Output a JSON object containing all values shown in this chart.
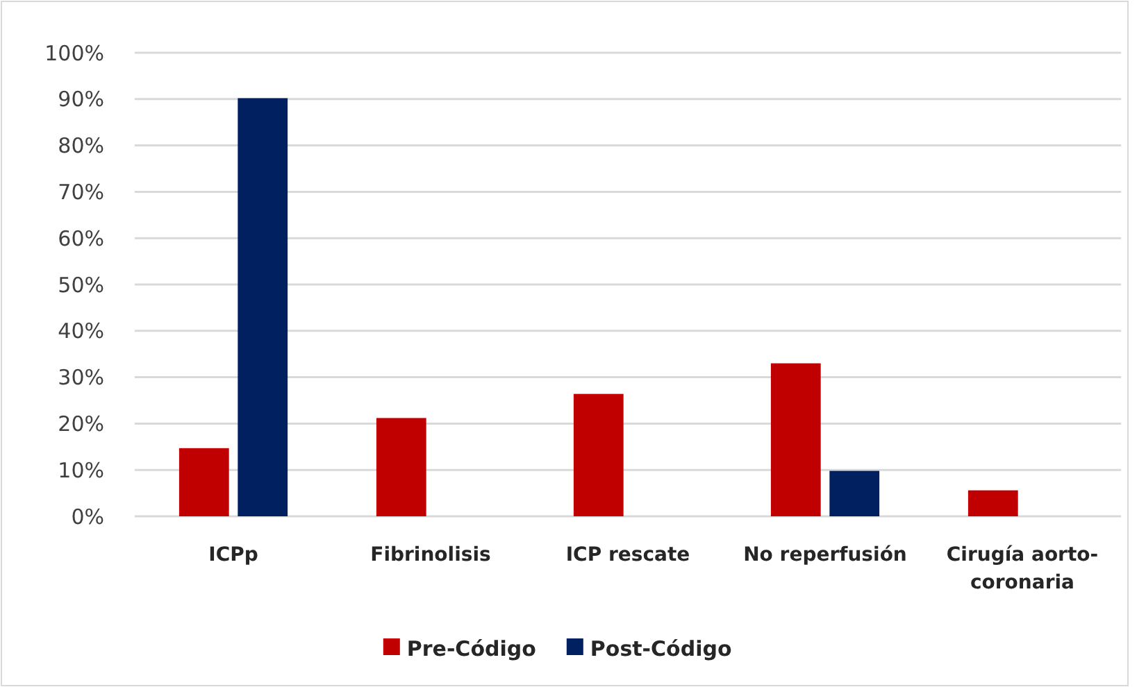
{
  "chart_data": {
    "type": "bar",
    "categories": [
      "ICPp",
      "Fibrinolisis",
      "ICP rescate",
      "No reperfusión",
      "Cirugía aorto-coronaria"
    ],
    "series": [
      {
        "name": "Pre-Código",
        "color": "#c00000",
        "values": [
          14.7,
          21.2,
          26.4,
          33,
          5.6
        ]
      },
      {
        "name": "Post-Código",
        "color": "#002060",
        "values": [
          90.2,
          null,
          null,
          9.8,
          null
        ]
      }
    ],
    "ylim": [
      0,
      100
    ],
    "yticks": [
      {
        "value": 0,
        "label": "0%"
      },
      {
        "value": 10,
        "label": "10%"
      },
      {
        "value": 20,
        "label": "20%"
      },
      {
        "value": 30,
        "label": "30%"
      },
      {
        "value": 40,
        "label": "40%"
      },
      {
        "value": 50,
        "label": "50%"
      },
      {
        "value": 60,
        "label": "60%"
      },
      {
        "value": 70,
        "label": "70%"
      },
      {
        "value": 80,
        "label": "80%"
      },
      {
        "value": 90,
        "label": "90%"
      },
      {
        "value": 100,
        "label": "100%"
      }
    ],
    "grid": "y",
    "legend": "bottom"
  }
}
